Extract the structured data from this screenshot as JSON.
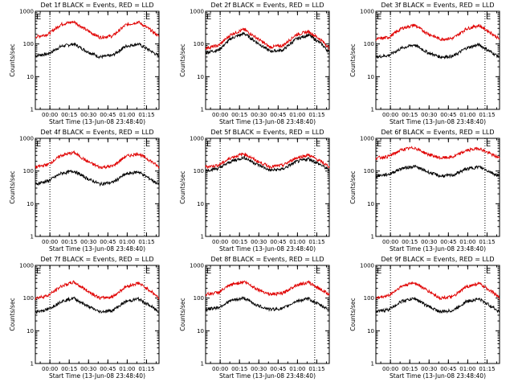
{
  "figure": {
    "colors": {
      "events": "#000000",
      "lld": "#e00000",
      "background": "#ffffff"
    },
    "y_tick_labels": [
      "1",
      "10",
      "100",
      "1000"
    ],
    "x_tick_labels": [
      "00:00",
      "00:15",
      "00:30",
      "00:45",
      "01:00",
      "01:15"
    ],
    "vline_times_min": [
      11.3,
      84.7
    ],
    "flag_label": "E"
  },
  "chart_data": [
    {
      "type": "line",
      "title": "Det 1f BLACK = Events, RED = LLD",
      "ylabel": "Counts/sec",
      "xlabel": "Start Time (13-Jun-08 23:48:40)",
      "yscale": "log",
      "ylim": [
        1,
        1000
      ],
      "xlim_minutes": [
        0,
        96
      ],
      "series": [
        {
          "name": "Events",
          "color": "#000000",
          "x_min": [
            0,
            10,
            20,
            30,
            40,
            50,
            60,
            70,
            80,
            90,
            96
          ],
          "values": [
            44,
            50,
            85,
            100,
            60,
            40,
            45,
            85,
            100,
            60,
            42
          ]
        },
        {
          "name": "LLD",
          "color": "#e00000",
          "x_min": [
            0,
            10,
            20,
            30,
            40,
            50,
            60,
            70,
            80,
            90,
            96
          ],
          "values": [
            165,
            200,
            400,
            480,
            260,
            160,
            175,
            380,
            470,
            260,
            170
          ]
        }
      ]
    },
    {
      "type": "line",
      "title": "Det 2f BLACK = Events, RED = LLD",
      "ylabel": "Counts/sec",
      "xlabel": "Start Time (13-Jun-08 23:48:40)",
      "yscale": "log",
      "ylim": [
        1,
        1000
      ],
      "xlim_minutes": [
        0,
        96
      ],
      "series": [
        {
          "name": "Events",
          "color": "#000000",
          "x_min": [
            0,
            10,
            20,
            30,
            40,
            50,
            60,
            70,
            80,
            90,
            96
          ],
          "values": [
            55,
            65,
            150,
            210,
            110,
            60,
            65,
            140,
            190,
            100,
            55
          ]
        },
        {
          "name": "LLD",
          "color": "#e00000",
          "x_min": [
            0,
            10,
            20,
            30,
            40,
            50,
            60,
            70,
            80,
            90,
            96
          ],
          "values": [
            75,
            90,
            200,
            280,
            150,
            80,
            90,
            190,
            240,
            130,
            75
          ]
        }
      ]
    },
    {
      "type": "line",
      "title": "Det 3f BLACK = Events, RED = LLD",
      "ylabel": "Counts/sec",
      "xlabel": "Start Time (13-Jun-08 23:48:40)",
      "yscale": "log",
      "ylim": [
        1,
        1000
      ],
      "xlim_minutes": [
        0,
        96
      ],
      "series": [
        {
          "name": "Events",
          "color": "#000000",
          "x_min": [
            0,
            10,
            20,
            30,
            40,
            50,
            60,
            70,
            80,
            90,
            96
          ],
          "values": [
            40,
            45,
            75,
            95,
            55,
            40,
            42,
            75,
            95,
            55,
            40
          ]
        },
        {
          "name": "LLD",
          "color": "#e00000",
          "x_min": [
            0,
            10,
            20,
            30,
            40,
            50,
            60,
            70,
            80,
            90,
            96
          ],
          "values": [
            140,
            160,
            300,
            380,
            210,
            140,
            150,
            290,
            370,
            210,
            140
          ]
        }
      ]
    },
    {
      "type": "line",
      "title": "Det 4f BLACK = Events, RED = LLD",
      "ylabel": "Counts/sec",
      "xlabel": "Start Time (13-Jun-08 23:48:40)",
      "yscale": "log",
      "ylim": [
        1,
        1000
      ],
      "xlim_minutes": [
        0,
        96
      ],
      "series": [
        {
          "name": "Events",
          "color": "#000000",
          "x_min": [
            0,
            10,
            20,
            30,
            40,
            50,
            60,
            70,
            80,
            90,
            96
          ],
          "values": [
            40,
            50,
            85,
            100,
            60,
            40,
            45,
            80,
            95,
            55,
            38
          ]
        },
        {
          "name": "LLD",
          "color": "#e00000",
          "x_min": [
            0,
            10,
            20,
            30,
            40,
            50,
            60,
            70,
            80,
            90,
            96
          ],
          "values": [
            130,
            160,
            300,
            370,
            200,
            130,
            140,
            280,
            340,
            200,
            130
          ]
        }
      ]
    },
    {
      "type": "line",
      "title": "Det 5f BLACK = Events, RED = LLD",
      "ylabel": "Counts/sec",
      "xlabel": "Start Time (13-Jun-08 23:48:40)",
      "yscale": "log",
      "ylim": [
        1,
        1000
      ],
      "xlim_minutes": [
        0,
        96
      ],
      "series": [
        {
          "name": "Events",
          "color": "#000000",
          "x_min": [
            0,
            10,
            20,
            30,
            40,
            50,
            60,
            70,
            80,
            90,
            96
          ],
          "values": [
            105,
            120,
            200,
            260,
            160,
            105,
            115,
            190,
            240,
            150,
            105
          ]
        },
        {
          "name": "LLD",
          "color": "#e00000",
          "x_min": [
            0,
            10,
            20,
            30,
            40,
            50,
            60,
            70,
            80,
            90,
            96
          ],
          "values": [
            135,
            150,
            260,
            340,
            200,
            135,
            150,
            250,
            310,
            190,
            135
          ]
        }
      ]
    },
    {
      "type": "line",
      "title": "Det 6f BLACK = Events, RED = LLD",
      "ylabel": "Counts/sec",
      "xlabel": "Start Time (13-Jun-08 23:48:40)",
      "yscale": "log",
      "ylim": [
        1,
        1000
      ],
      "xlim_minutes": [
        0,
        96
      ],
      "series": [
        {
          "name": "Events",
          "color": "#000000",
          "x_min": [
            0,
            10,
            20,
            30,
            40,
            50,
            60,
            70,
            80,
            90,
            96
          ],
          "values": [
            70,
            80,
            120,
            140,
            95,
            70,
            75,
            115,
            135,
            90,
            68
          ]
        },
        {
          "name": "LLD",
          "color": "#e00000",
          "x_min": [
            0,
            10,
            20,
            30,
            40,
            50,
            60,
            70,
            80,
            90,
            96
          ],
          "values": [
            250,
            280,
            450,
            520,
            330,
            250,
            270,
            420,
            500,
            320,
            250
          ]
        }
      ]
    },
    {
      "type": "line",
      "title": "Det 7f BLACK = Events, RED = LLD",
      "ylabel": "Counts/sec",
      "xlabel": "Start Time (13-Jun-08 23:48:40)",
      "yscale": "log",
      "ylim": [
        1,
        1000
      ],
      "xlim_minutes": [
        0,
        96
      ],
      "series": [
        {
          "name": "Events",
          "color": "#000000",
          "x_min": [
            0,
            10,
            20,
            30,
            40,
            50,
            60,
            70,
            80,
            90,
            96
          ],
          "values": [
            38,
            45,
            80,
            100,
            58,
            38,
            42,
            78,
            95,
            55,
            38
          ]
        },
        {
          "name": "LLD",
          "color": "#e00000",
          "x_min": [
            0,
            10,
            20,
            30,
            40,
            50,
            60,
            70,
            80,
            90,
            96
          ],
          "values": [
            100,
            120,
            230,
            310,
            170,
            100,
            110,
            220,
            290,
            160,
            100
          ]
        }
      ]
    },
    {
      "type": "line",
      "title": "Det 8f BLACK = Events, RED = LLD",
      "ylabel": "Counts/sec",
      "xlabel": "Start Time (13-Jun-08 23:48:40)",
      "yscale": "log",
      "ylim": [
        1,
        1000
      ],
      "xlim_minutes": [
        0,
        96
      ],
      "series": [
        {
          "name": "Events",
          "color": "#000000",
          "x_min": [
            0,
            10,
            20,
            30,
            40,
            50,
            60,
            70,
            80,
            90,
            96
          ],
          "values": [
            45,
            52,
            85,
            100,
            60,
            45,
            48,
            80,
            95,
            58,
            44
          ]
        },
        {
          "name": "LLD",
          "color": "#e00000",
          "x_min": [
            0,
            10,
            20,
            30,
            40,
            50,
            60,
            70,
            80,
            90,
            96
          ],
          "values": [
            130,
            150,
            260,
            320,
            190,
            130,
            140,
            250,
            300,
            180,
            130
          ]
        }
      ]
    },
    {
      "type": "line",
      "title": "Det 9f BLACK = Events, RED = LLD",
      "ylabel": "Counts/sec",
      "xlabel": "Start Time (13-Jun-08 23:48:40)",
      "yscale": "log",
      "ylim": [
        1,
        1000
      ],
      "xlim_minutes": [
        0,
        96
      ],
      "series": [
        {
          "name": "Events",
          "color": "#000000",
          "x_min": [
            0,
            10,
            20,
            30,
            40,
            50,
            60,
            70,
            80,
            90,
            96
          ],
          "values": [
            38,
            45,
            80,
            98,
            58,
            38,
            42,
            78,
            95,
            55,
            38
          ]
        },
        {
          "name": "LLD",
          "color": "#e00000",
          "x_min": [
            0,
            10,
            20,
            30,
            40,
            50,
            60,
            70,
            80,
            90,
            96
          ],
          "values": [
            100,
            120,
            230,
            300,
            170,
            100,
            110,
            220,
            280,
            160,
            100
          ]
        }
      ]
    }
  ]
}
